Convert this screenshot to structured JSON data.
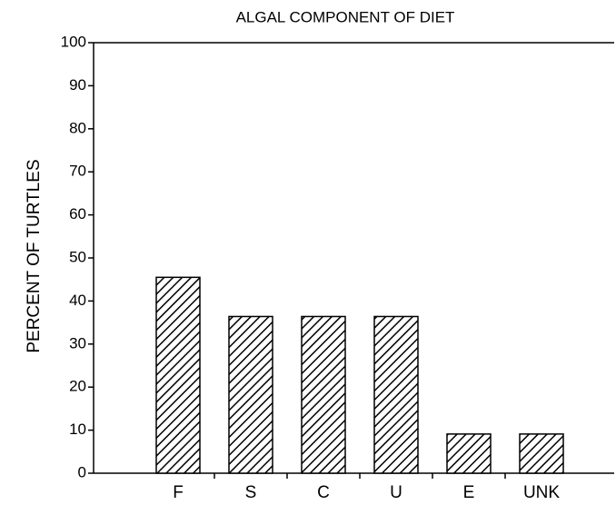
{
  "chart_data": {
    "type": "bar",
    "title": "ALGAL COMPONENT OF DIET",
    "y_label": "PERCENT OF TURTLES",
    "categories": [
      "F",
      "S",
      "C",
      "U",
      "E",
      "UNK"
    ],
    "values": [
      45.5,
      36.4,
      36.4,
      36.4,
      9.1,
      9.1
    ],
    "color": "#000000",
    "ylim": [
      0,
      100
    ],
    "yticks": [
      0,
      10,
      20,
      30,
      40,
      50,
      60,
      70,
      80,
      90,
      100
    ],
    "grid": false
  }
}
